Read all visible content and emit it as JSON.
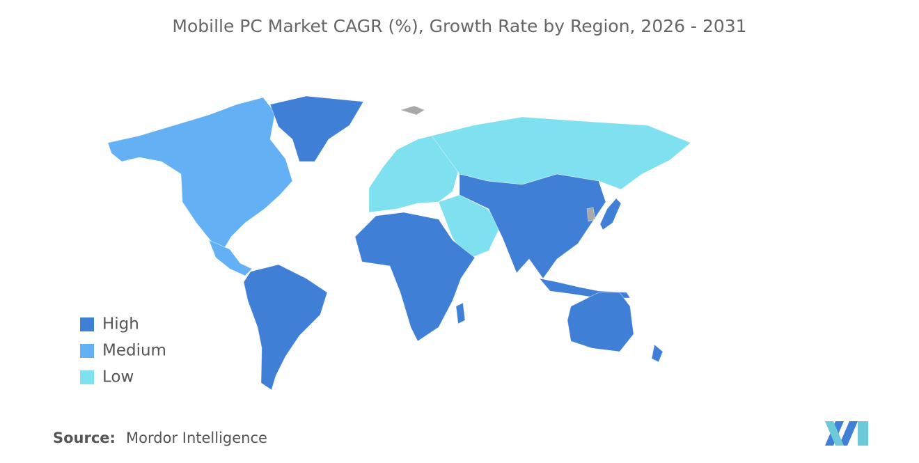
{
  "title": "Mobille PC Market CAGR (%), Growth Rate by Region, 2026 - 2031",
  "legend": [
    {
      "label": "High",
      "color": "#3f7fd6"
    },
    {
      "label": "Medium",
      "color": "#63b0f4"
    },
    {
      "label": "Low",
      "color": "#7fe0ef"
    }
  ],
  "no_data_color": "#a9a9a9",
  "source": {
    "label": "Source:",
    "text": "Mordor Intelligence"
  }
}
